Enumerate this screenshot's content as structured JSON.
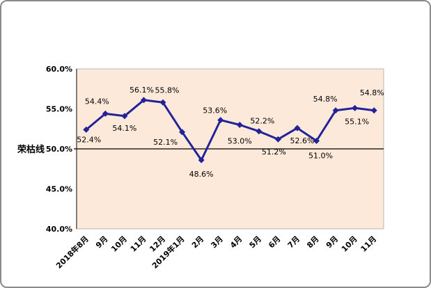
{
  "chart_data": {
    "type": "line",
    "title": "",
    "ylabel": "荣枯线",
    "categories": [
      "2018年8月",
      "9月",
      "10月",
      "11月",
      "12月",
      "2019年1月",
      "2月",
      "3月",
      "4月",
      "5月",
      "6月",
      "7月",
      "8月",
      "9月",
      "10月",
      "11月"
    ],
    "values": [
      52.4,
      54.4,
      54.1,
      56.1,
      55.8,
      52.1,
      48.6,
      53.6,
      53.0,
      52.2,
      51.2,
      52.6,
      51.0,
      54.8,
      55.1,
      54.8
    ],
    "data_label_format": "percent_one_decimal",
    "ylim": [
      40,
      60
    ],
    "ytick_step": 5,
    "ytick_labels": [
      "60.0%",
      "55.0%",
      "50.0%",
      "45.0%",
      "40.0%"
    ],
    "reference_line": {
      "value": 50.0,
      "label": "荣枯线",
      "color": "#000000"
    },
    "grid": false,
    "legend": false,
    "x_label_rotation_deg": 45,
    "label_side": [
      "below",
      "above",
      "below",
      "above",
      "above",
      "below",
      "below",
      "above",
      "below",
      "above",
      "below",
      "below",
      "below",
      "above",
      "below",
      "above"
    ],
    "label_dx": [
      4,
      -12,
      0,
      -3,
      6,
      -24,
      0,
      -8,
      0,
      5,
      -6,
      7,
      6,
      -15,
      3,
      -3
    ],
    "label_dy": [
      18,
      -14,
      21,
      -11,
      -14,
      18,
      24,
      -10,
      27,
      -11,
      22,
      22,
      25,
      -13,
      23,
      -22
    ],
    "colors": {
      "series": "#22229a",
      "marker": "#22229a",
      "plot_background": "#fde9d9",
      "plot_border": "#b8b8b8",
      "value_axis_line": "#555555",
      "frame_border": "#8a8a8a",
      "reference_line": "#000000",
      "text": "#000000"
    }
  }
}
